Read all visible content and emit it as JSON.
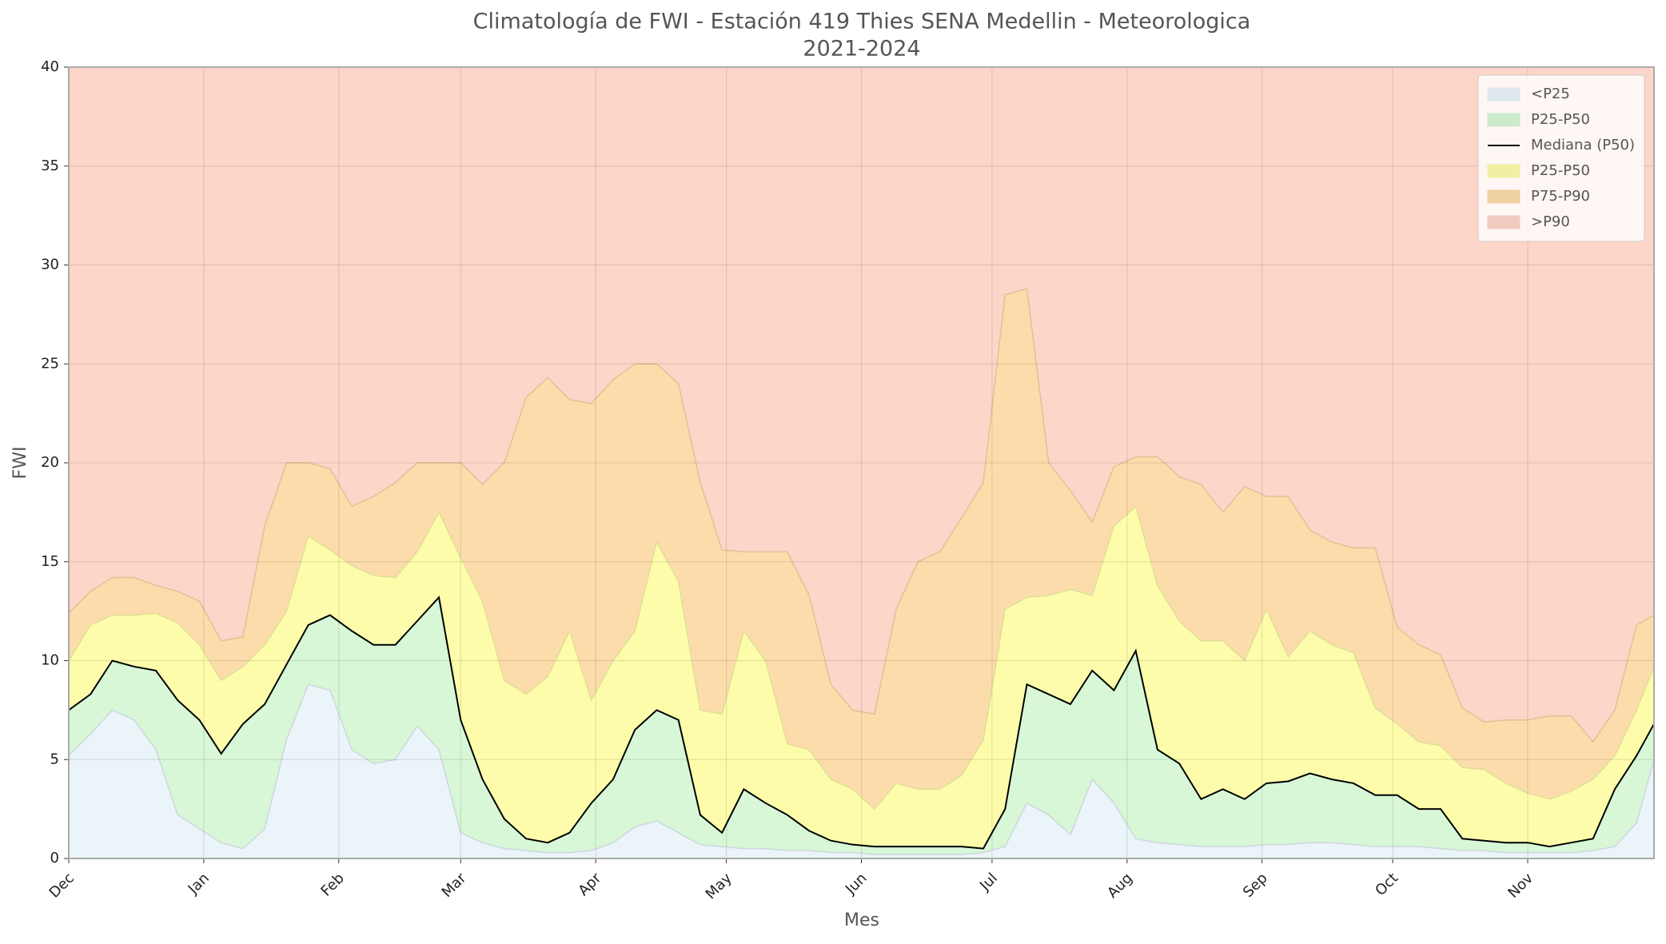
{
  "chart_data": {
    "type": "percentile_bands",
    "title": "Climatología de FWI - Estación 419 Thies SENA Medellin - Meteorologica",
    "subtitle": "2021-2024",
    "x_label": "Mes",
    "y_label": "FWI",
    "x": [
      0,
      5,
      10,
      15,
      20,
      25,
      30,
      35,
      40,
      45,
      50,
      55,
      60,
      65,
      70,
      75,
      80,
      85,
      90,
      95,
      100,
      105,
      110,
      115,
      120,
      125,
      130,
      135,
      140,
      145,
      150,
      155,
      160,
      165,
      170,
      175,
      180,
      185,
      190,
      195,
      200,
      205,
      210,
      215,
      220,
      225,
      230,
      235,
      240,
      245,
      250,
      255,
      260,
      265,
      270,
      275,
      280,
      285,
      290,
      295,
      300,
      305,
      310,
      315,
      320,
      325,
      330,
      335,
      340,
      345,
      350,
      355,
      360,
      364
    ],
    "xlim": [
      0,
      364
    ],
    "xticks": [
      {
        "value": 0,
        "label": "Dec"
      },
      {
        "value": 31,
        "label": "Jan"
      },
      {
        "value": 62,
        "label": "Feb"
      },
      {
        "value": 90,
        "label": "Mar"
      },
      {
        "value": 121,
        "label": "Apr"
      },
      {
        "value": 151,
        "label": "May"
      },
      {
        "value": 182,
        "label": "Jun"
      },
      {
        "value": 212,
        "label": "Jul"
      },
      {
        "value": 243,
        "label": "Aug"
      },
      {
        "value": 274,
        "label": "Sep"
      },
      {
        "value": 304,
        "label": "Oct"
      },
      {
        "value": 335,
        "label": "Nov"
      }
    ],
    "ylim": [
      0,
      40
    ],
    "yticks": [
      0,
      5,
      10,
      15,
      20,
      25,
      30,
      35,
      40
    ],
    "grid": true,
    "legend": "upper right",
    "series": [
      {
        "name": "<P25",
        "color": "#eaf4f9",
        "values": [
          5.2,
          6.3,
          7.5,
          7,
          5.5,
          2.2,
          1.5,
          0.8,
          0.5,
          1.5,
          6,
          8.8,
          8.5,
          5.5,
          4.8,
          5,
          6.7,
          5.5,
          1.3,
          0.8,
          0.5,
          0.4,
          0.3,
          0.3,
          0.4,
          0.8,
          1.6,
          1.9,
          1.3,
          0.7,
          0.6,
          0.5,
          0.5,
          0.4,
          0.4,
          0.3,
          0.3,
          0.2,
          0.2,
          0.2,
          0.2,
          0.2,
          0.3,
          0.6,
          2.8,
          2.2,
          1.2,
          4,
          2.8,
          1,
          0.8,
          0.7,
          0.6,
          0.6,
          0.6,
          0.7,
          0.7,
          0.8,
          0.8,
          0.7,
          0.6,
          0.6,
          0.6,
          0.5,
          0.4,
          0.4,
          0.3,
          0.3,
          0.3,
          0.3,
          0.4,
          0.6,
          1.8,
          5
        ]
      },
      {
        "name": "P25-P50",
        "color": "#d7f7d7"
      },
      {
        "name": "Mediana (P50)",
        "color": "#000000",
        "style": "line",
        "values": [
          7.5,
          8.3,
          10,
          9.7,
          9.5,
          8,
          7,
          5.3,
          6.8,
          7.8,
          9.8,
          11.8,
          12.3,
          11.5,
          10.8,
          10.8,
          12,
          13.2,
          7,
          4,
          2,
          1,
          0.8,
          1.3,
          2.8,
          4,
          6.5,
          7.5,
          7,
          2.2,
          1.3,
          3.5,
          2.8,
          2.2,
          1.4,
          0.9,
          0.7,
          0.6,
          0.6,
          0.6,
          0.6,
          0.6,
          0.5,
          2.5,
          8.8,
          8.3,
          7.8,
          9.5,
          8.5,
          10.5,
          5.5,
          4.8,
          3,
          3.5,
          3,
          3.8,
          3.9,
          4.3,
          4,
          3.8,
          3.2,
          3.2,
          2.5,
          2.5,
          1,
          0.9,
          0.8,
          0.8,
          0.6,
          0.8,
          1,
          3.5,
          5.2,
          6.8
        ]
      },
      {
        "name": "P25-P50",
        "color": "#fdfcab",
        "values": [
          10,
          11.8,
          12.3,
          12.3,
          12.4,
          11.9,
          10.8,
          9,
          9.7,
          10.8,
          12.5,
          16.3,
          15.6,
          14.8,
          14.3,
          14.2,
          15.5,
          17.5,
          15.2,
          13,
          9,
          8.3,
          9.2,
          11.5,
          8,
          10,
          11.5,
          16,
          14,
          7.5,
          7.3,
          11.5,
          10,
          5.8,
          5.5,
          4,
          3.5,
          2.5,
          3.8,
          3.5,
          3.5,
          4.2,
          6,
          12.6,
          13.2,
          13.3,
          13.6,
          13.3,
          16.8,
          17.8,
          13.8,
          12,
          11,
          11,
          10,
          12.6,
          10.2,
          11.5,
          10.8,
          10.4,
          7.6,
          6.8,
          5.9,
          5.7,
          4.6,
          4.5,
          3.8,
          3.3,
          3,
          3.4,
          4,
          5.2,
          7.5,
          9.7
        ]
      },
      {
        "name": "P75-P90",
        "color": "#fddcab",
        "values": [
          12.4,
          13.5,
          14.2,
          14.2,
          13.8,
          13.5,
          13,
          11,
          11.2,
          16.8,
          20,
          20,
          19.7,
          17.8,
          18.3,
          19,
          20,
          20,
          20,
          18.9,
          20,
          23.3,
          24.3,
          23.2,
          23,
          24.2,
          25,
          25,
          24,
          19,
          15.6,
          15.5,
          15.5,
          15.5,
          13.3,
          8.8,
          7.5,
          7.3,
          12.6,
          15,
          15.5,
          17.2,
          19,
          28.5,
          28.8,
          20,
          18.6,
          17,
          19.8,
          20.3,
          20.3,
          19.3,
          18.9,
          17.5,
          18.8,
          18.3,
          18.3,
          16.6,
          16,
          15.7,
          15.7,
          11.7,
          10.8,
          10.3,
          7.6,
          6.9,
          7,
          7,
          7.2,
          7.2,
          5.9,
          7.5,
          11.8,
          12.3
        ]
      },
      {
        "name": ">P90",
        "color": "#fed5c9"
      }
    ]
  }
}
